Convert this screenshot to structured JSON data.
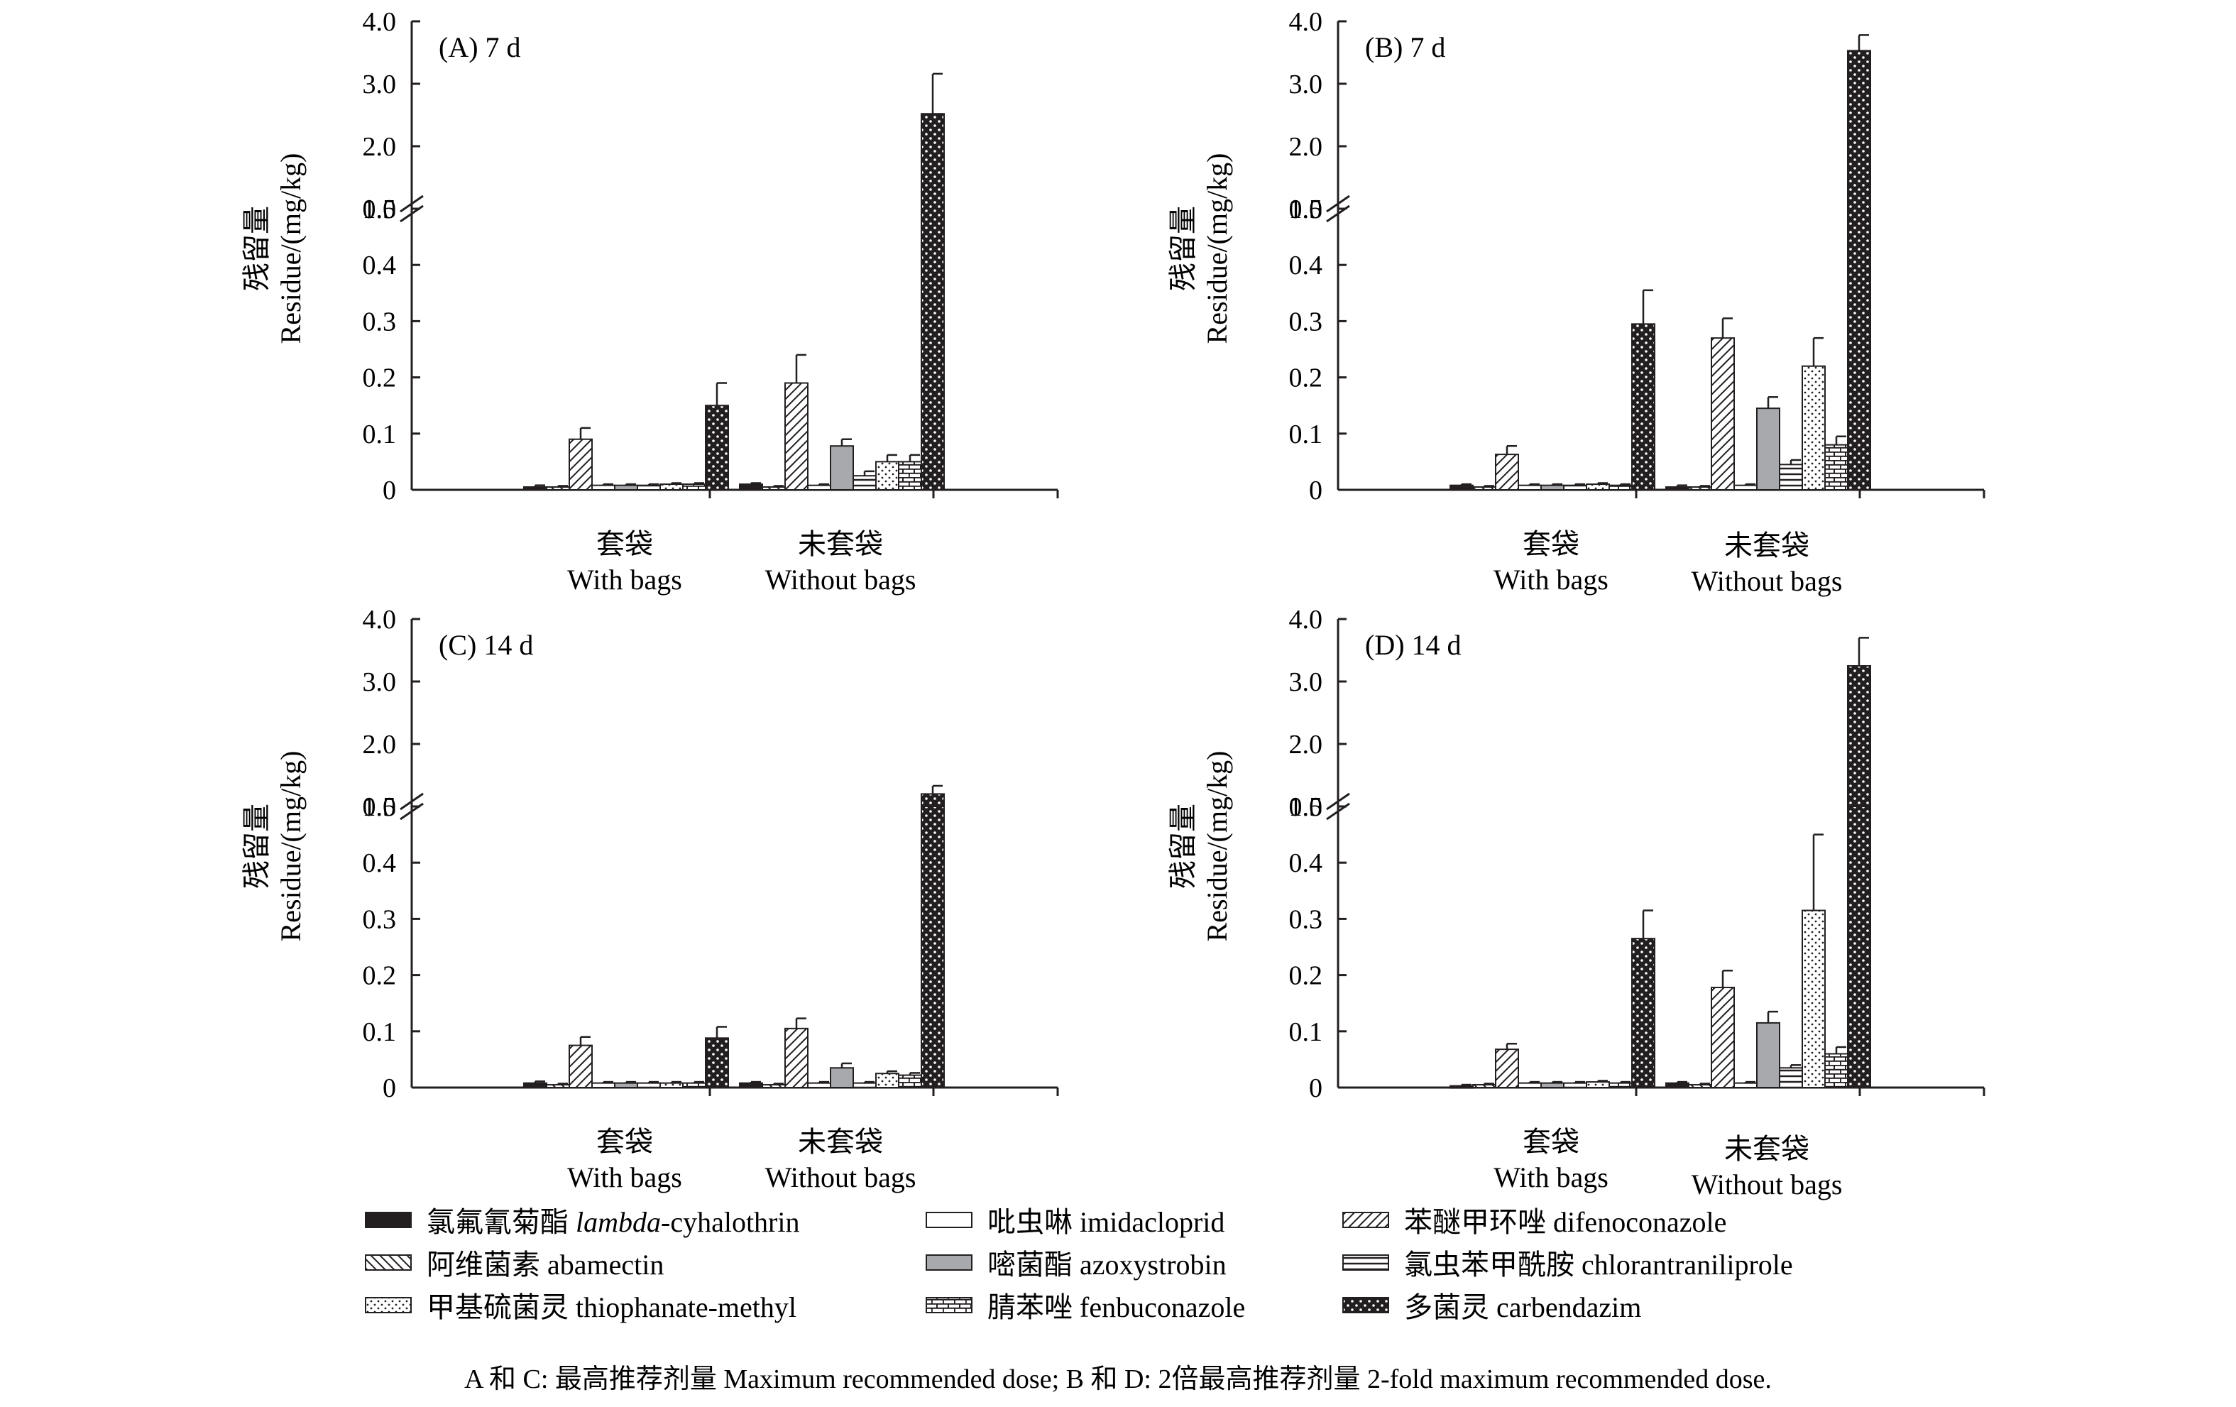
{
  "chart_data": [
    {
      "type": "bar",
      "panel_label": "(A) 7 d",
      "ylabel_zh": "残留量",
      "ylabel_en": "Residue/(mg/kg)",
      "axis_break": [
        0.5,
        1.0
      ],
      "y_ticks_lower": [
        "0",
        "0.1",
        "0.2",
        "0.3",
        "0.4",
        "0.5"
      ],
      "y_ticks_upper": [
        "1.0",
        "2.0",
        "3.0",
        "4.0"
      ],
      "categories": [
        {
          "zh": "套袋",
          "en": "With bags"
        },
        {
          "zh": "未套袋",
          "en": "Without bags"
        }
      ],
      "series": [
        {
          "name": "lambda-cyhalothrin",
          "values": [
            0.005,
            0.01
          ],
          "errors": [
            0.003,
            0.002
          ]
        },
        {
          "name": "abamectin",
          "values": [
            0.005,
            0.005
          ],
          "errors": [
            0.002,
            0.002
          ]
        },
        {
          "name": "difenoconazole",
          "values": [
            0.09,
            0.19
          ],
          "errors": [
            0.02,
            0.05
          ]
        },
        {
          "name": "imidacloprid",
          "values": [
            0.008,
            0.008
          ],
          "errors": [
            0.002,
            0.002
          ]
        },
        {
          "name": "azoxystrobin",
          "values": [
            0.008,
            0.078
          ],
          "errors": [
            0.002,
            0.012
          ]
        },
        {
          "name": "chlorantraniliprole",
          "values": [
            0.008,
            0.025
          ],
          "errors": [
            0.002,
            0.008
          ]
        },
        {
          "name": "thiophanate-methyl",
          "values": [
            0.01,
            0.05
          ],
          "errors": [
            0.002,
            0.012
          ]
        },
        {
          "name": "fenbuconazole",
          "values": [
            0.01,
            0.05
          ],
          "errors": [
            0.002,
            0.012
          ]
        },
        {
          "name": "carbendazim",
          "values": [
            0.15,
            2.52
          ],
          "errors": [
            0.04,
            0.64
          ]
        }
      ]
    },
    {
      "type": "bar",
      "panel_label": "(B) 7 d",
      "ylabel_zh": "残留量",
      "ylabel_en": "Residue/(mg/kg)",
      "axis_break": [
        0.5,
        1.0
      ],
      "y_ticks_lower": [
        "0",
        "0.1",
        "0.2",
        "0.3",
        "0.4",
        "0.5"
      ],
      "y_ticks_upper": [
        "1.0",
        "2.0",
        "3.0",
        "4.0"
      ],
      "categories": [
        {
          "zh": "套袋",
          "en": "With bags"
        },
        {
          "zh": "未套袋",
          "en": "Without bags"
        }
      ],
      "series": [
        {
          "name": "lambda-cyhalothrin",
          "values": [
            0.008,
            0.005
          ],
          "errors": [
            0.002,
            0.003
          ]
        },
        {
          "name": "abamectin",
          "values": [
            0.005,
            0.005
          ],
          "errors": [
            0.002,
            0.002
          ]
        },
        {
          "name": "difenoconazole",
          "values": [
            0.063,
            0.27
          ],
          "errors": [
            0.015,
            0.035
          ]
        },
        {
          "name": "imidacloprid",
          "values": [
            0.008,
            0.008
          ],
          "errors": [
            0.002,
            0.002
          ]
        },
        {
          "name": "azoxystrobin",
          "values": [
            0.008,
            0.145
          ],
          "errors": [
            0.002,
            0.02
          ]
        },
        {
          "name": "chlorantraniliprole",
          "values": [
            0.008,
            0.045
          ],
          "errors": [
            0.002,
            0.008
          ]
        },
        {
          "name": "thiophanate-methyl",
          "values": [
            0.01,
            0.22
          ],
          "errors": [
            0.002,
            0.05
          ]
        },
        {
          "name": "fenbuconazole",
          "values": [
            0.008,
            0.08
          ],
          "errors": [
            0.002,
            0.015
          ]
        },
        {
          "name": "carbendazim",
          "values": [
            0.295,
            3.53
          ],
          "errors": [
            0.06,
            0.25
          ]
        }
      ]
    },
    {
      "type": "bar",
      "panel_label": "(C) 14 d",
      "ylabel_zh": "残留量",
      "ylabel_en": "Residue/(mg/kg)",
      "axis_break": [
        0.5,
        1.0
      ],
      "y_ticks_lower": [
        "0",
        "0.1",
        "0.2",
        "0.3",
        "0.4",
        "0.5"
      ],
      "y_ticks_upper": [
        "1.0",
        "2.0",
        "3.0",
        "4.0"
      ],
      "categories": [
        {
          "zh": "套袋",
          "en": "With bags"
        },
        {
          "zh": "未套袋",
          "en": "Without bags"
        }
      ],
      "series": [
        {
          "name": "lambda-cyhalothrin",
          "values": [
            0.008,
            0.008
          ],
          "errors": [
            0.003,
            0.002
          ]
        },
        {
          "name": "abamectin",
          "values": [
            0.005,
            0.005
          ],
          "errors": [
            0.002,
            0.002
          ]
        },
        {
          "name": "difenoconazole",
          "values": [
            0.075,
            0.105
          ],
          "errors": [
            0.015,
            0.018
          ]
        },
        {
          "name": "imidacloprid",
          "values": [
            0.008,
            0.008
          ],
          "errors": [
            0.002,
            0.002
          ]
        },
        {
          "name": "azoxystrobin",
          "values": [
            0.008,
            0.035
          ],
          "errors": [
            0.002,
            0.008
          ]
        },
        {
          "name": "chlorantraniliprole",
          "values": [
            0.008,
            0.008
          ],
          "errors": [
            0.002,
            0.002
          ]
        },
        {
          "name": "thiophanate-methyl",
          "values": [
            0.008,
            0.025
          ],
          "errors": [
            0.002,
            0.004
          ]
        },
        {
          "name": "fenbuconazole",
          "values": [
            0.008,
            0.022
          ],
          "errors": [
            0.002,
            0.004
          ]
        },
        {
          "name": "carbendazim",
          "values": [
            0.088,
            1.2
          ],
          "errors": [
            0.02,
            0.13
          ]
        }
      ]
    },
    {
      "type": "bar",
      "panel_label": "(D) 14 d",
      "ylabel_zh": "残留量",
      "ylabel_en": "Residue/(mg/kg)",
      "axis_break": [
        0.5,
        1.0
      ],
      "y_ticks_lower": [
        "0",
        "0.1",
        "0.2",
        "0.3",
        "0.4",
        "0.5"
      ],
      "y_ticks_upper": [
        "1.0",
        "2.0",
        "3.0",
        "4.0"
      ],
      "categories": [
        {
          "zh": "套袋",
          "en": "With bags"
        },
        {
          "zh": "未套袋",
          "en": "Without bags"
        }
      ],
      "series": [
        {
          "name": "lambda-cyhalothrin",
          "values": [
            0.003,
            0.008
          ],
          "errors": [
            0.002,
            0.002
          ]
        },
        {
          "name": "abamectin",
          "values": [
            0.005,
            0.005
          ],
          "errors": [
            0.002,
            0.002
          ]
        },
        {
          "name": "difenoconazole",
          "values": [
            0.068,
            0.178
          ],
          "errors": [
            0.01,
            0.03
          ]
        },
        {
          "name": "imidacloprid",
          "values": [
            0.008,
            0.008
          ],
          "errors": [
            0.002,
            0.002
          ]
        },
        {
          "name": "azoxystrobin",
          "values": [
            0.008,
            0.115
          ],
          "errors": [
            0.002,
            0.02
          ]
        },
        {
          "name": "chlorantraniliprole",
          "values": [
            0.008,
            0.035
          ],
          "errors": [
            0.002,
            0.005
          ]
        },
        {
          "name": "thiophanate-methyl",
          "values": [
            0.01,
            0.315
          ],
          "errors": [
            0.002,
            0.135
          ]
        },
        {
          "name": "fenbuconazole",
          "values": [
            0.008,
            0.06
          ],
          "errors": [
            0.002,
            0.012
          ]
        },
        {
          "name": "carbendazim",
          "values": [
            0.265,
            3.25
          ],
          "errors": [
            0.05,
            0.45
          ]
        }
      ]
    }
  ],
  "legend": [
    {
      "zh": "氯氟氰菊酯",
      "en_italic": "lambda",
      "en": "-cyhalothrin",
      "pattern": "solid",
      "color": "#231f20"
    },
    {
      "zh": "吡虫啉",
      "en_italic": "",
      "en": "imidacloprid",
      "pattern": "white",
      "color": "#ffffff"
    },
    {
      "zh": "苯醚甲环唑",
      "en_italic": "",
      "en": "difenoconazole",
      "pattern": "diag-right",
      "color": "#ffffff"
    },
    {
      "zh": "阿维菌素",
      "en_italic": "",
      "en": "abamectin",
      "pattern": "diag-left",
      "color": "#ffffff"
    },
    {
      "zh": "嘧菌酯",
      "en_italic": "",
      "en": "azoxystrobin",
      "pattern": "gray",
      "color": "#a7a9ac"
    },
    {
      "zh": "氯虫苯甲酰胺",
      "en_italic": "",
      "en": "chlorantraniliprole",
      "pattern": "hlines",
      "color": "#ffffff"
    },
    {
      "zh": "甲基硫菌灵",
      "en_italic": "",
      "en": "thiophanate-methyl",
      "pattern": "dots",
      "color": "#ffffff"
    },
    {
      "zh": "腈苯唑",
      "en_italic": "",
      "en": "fenbuconazole",
      "pattern": "brick",
      "color": "#ffffff"
    },
    {
      "zh": "多菌灵",
      "en_italic": "",
      "en": "carbendazim",
      "pattern": "dense-dots",
      "color": "#231f20"
    }
  ],
  "footnote": "A 和 C: 最高推荐剂量 Maximum recommended dose; B 和 D: 2倍最高推荐剂量 2-fold maximum recommended dose."
}
